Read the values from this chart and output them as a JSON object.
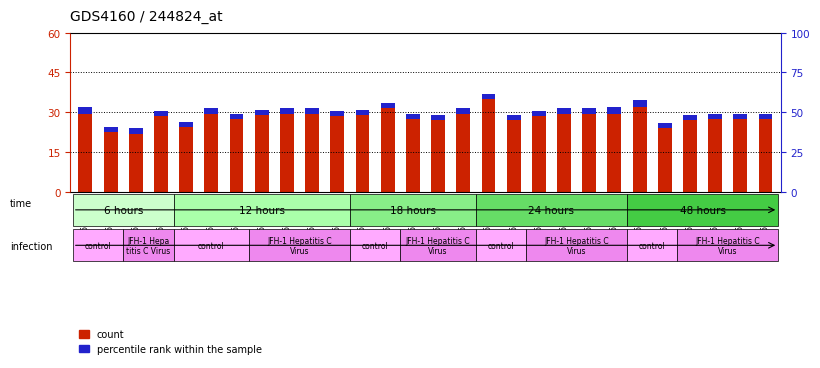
{
  "title": "GDS4160 / 244824_at",
  "samples": [
    "GSM523814",
    "GSM523815",
    "GSM523800",
    "GSM523801",
    "GSM523816",
    "GSM523817",
    "GSM523818",
    "GSM523802",
    "GSM523803",
    "GSM523804",
    "GSM523819",
    "GSM523820",
    "GSM523821",
    "GSM523805",
    "GSM523806",
    "GSM523807",
    "GSM523822",
    "GSM523823",
    "GSM523824",
    "GSM523808",
    "GSM523809",
    "GSM523810",
    "GSM523825",
    "GSM523826",
    "GSM523827",
    "GSM523811",
    "GSM523812",
    "GSM523813"
  ],
  "count_values": [
    29.5,
    22.5,
    22.0,
    28.5,
    24.5,
    29.5,
    27.5,
    29.0,
    29.5,
    29.5,
    28.5,
    29.0,
    31.5,
    27.5,
    27.0,
    29.5,
    35.0,
    27.0,
    28.5,
    29.5,
    29.5,
    29.5,
    32.0,
    24.0,
    27.0,
    27.5,
    27.5,
    27.5
  ],
  "blue_heights": [
    2.5,
    2.0,
    2.0,
    2.0,
    2.0,
    2.0,
    2.0,
    2.0,
    2.0,
    2.0,
    2.0,
    2.0,
    2.0,
    2.0,
    2.0,
    2.0,
    2.0,
    2.0,
    2.0,
    2.0,
    2.0,
    2.5,
    2.5,
    2.0,
    2.0,
    2.0,
    2.0,
    2.0
  ],
  "bar_color": "#cc2200",
  "blue_color": "#2222cc",
  "ylim_left": [
    0,
    60
  ],
  "ylim_right": [
    0,
    100
  ],
  "yticks_left": [
    0,
    15,
    30,
    45,
    60
  ],
  "yticks_right": [
    0,
    25,
    50,
    75,
    100
  ],
  "time_groups": [
    {
      "label": "6 hours",
      "start": 0,
      "end": 4,
      "color": "#ccffcc"
    },
    {
      "label": "12 hours",
      "start": 4,
      "end": 11,
      "color": "#aaffaa"
    },
    {
      "label": "18 hours",
      "start": 11,
      "end": 16,
      "color": "#88ee88"
    },
    {
      "label": "24 hours",
      "start": 16,
      "end": 22,
      "color": "#66dd66"
    },
    {
      "label": "48 hours",
      "start": 22,
      "end": 28,
      "color": "#44cc44"
    }
  ],
  "infection_groups": [
    {
      "label": "control",
      "start": 0,
      "end": 2,
      "color": "#ffaaff"
    },
    {
      "label": "JFH-1 Hepa\ntitis C Virus",
      "start": 2,
      "end": 4,
      "color": "#ee88ee"
    },
    {
      "label": "control",
      "start": 4,
      "end": 7,
      "color": "#ffaaff"
    },
    {
      "label": "JFH-1 Hepatitis C\nVirus",
      "start": 7,
      "end": 11,
      "color": "#ee88ee"
    },
    {
      "label": "control",
      "start": 11,
      "end": 13,
      "color": "#ffaaff"
    },
    {
      "label": "JFH-1 Hepatitis C\nVirus",
      "start": 13,
      "end": 16,
      "color": "#ee88ee"
    },
    {
      "label": "control",
      "start": 16,
      "end": 18,
      "color": "#ffaaff"
    },
    {
      "label": "JFH-1 Hepatitis C\nVirus",
      "start": 18,
      "end": 22,
      "color": "#ee88ee"
    },
    {
      "label": "control",
      "start": 22,
      "end": 24,
      "color": "#ffaaff"
    },
    {
      "label": "JFH-1 Hepatitis C\nVirus",
      "start": 24,
      "end": 28,
      "color": "#ee88ee"
    }
  ],
  "background_color": "#ffffff"
}
